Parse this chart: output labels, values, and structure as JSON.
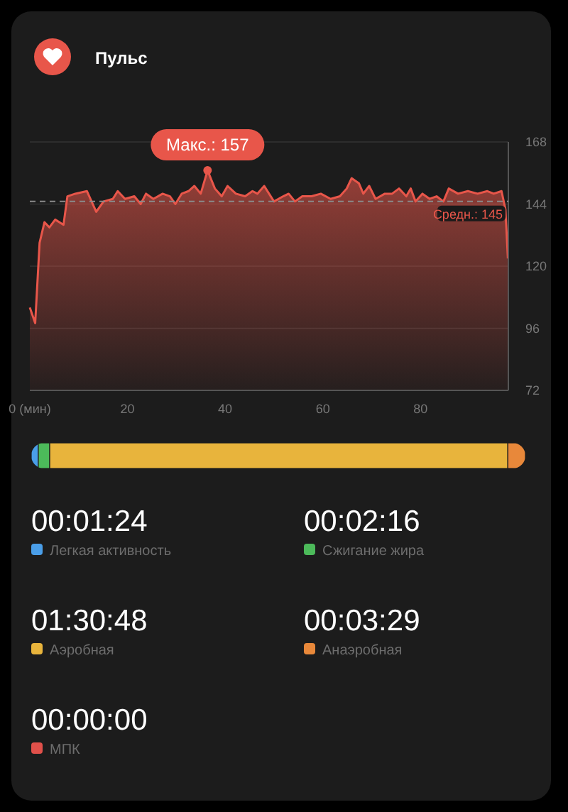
{
  "chart_data": [
    {
      "type": "area",
      "title": "Пульс",
      "xlim": [
        0,
        98
      ],
      "ylim": [
        72,
        168
      ],
      "xticks": [
        {
          "value": 0,
          "label": "0 (мин)"
        },
        20,
        40,
        60,
        80
      ],
      "yticks": [
        72,
        96,
        120,
        144,
        168
      ],
      "grid": "y",
      "x": [
        0,
        1.1,
        2,
        3,
        4,
        5.2,
        6.9,
        7.7,
        9.3,
        11.7,
        13.6,
        15.1,
        17,
        18,
        19.5,
        21.4,
        22.7,
        23.8,
        25.3,
        27.2,
        28.7,
        29.8,
        31.1,
        32.5,
        33.7,
        35,
        36.4,
        37.9,
        39.3,
        40.5,
        42.2,
        44.1,
        45.6,
        46.6,
        48,
        50,
        51.9,
        53,
        54.3,
        55.8,
        57.7,
        59.6,
        61.6,
        63.5,
        64.9,
        65.9,
        67.4,
        68.3,
        69.5,
        70.8,
        72.7,
        74.2,
        75.6,
        77.1,
        78,
        79,
        80.4,
        81.9,
        83.3,
        84.7,
        85.8,
        87.7,
        89.7,
        91.7,
        93.7,
        95,
        96.6,
        97.4,
        97.9
      ],
      "series": [
        {
          "color": "#e8564a",
          "values": [
            104,
            98,
            129,
            137,
            135,
            138,
            136,
            147,
            148,
            149,
            141,
            145,
            146,
            149,
            146,
            147,
            144,
            148,
            146,
            148,
            147,
            144,
            148,
            149,
            151,
            148,
            157,
            150,
            147,
            151,
            148,
            147,
            149,
            148,
            151,
            145,
            147,
            148,
            145,
            147,
            147,
            148,
            146,
            147,
            150,
            154,
            152,
            148,
            151,
            146,
            148,
            148,
            150,
            147,
            150,
            145,
            148,
            146,
            147,
            145,
            150,
            148,
            149,
            148,
            149,
            148,
            149,
            142,
            123
          ]
        }
      ],
      "ref_lines": [
        {
          "axis": "y",
          "value": 145,
          "label": "Средн.: 145",
          "color": "#8a8a8a",
          "line_style": "dashed"
        }
      ],
      "annotations": [
        {
          "text": "Макс.: 157",
          "x": 36.4,
          "y": 157
        }
      ]
    },
    {
      "type": "other",
      "categories": [
        "Легкая активность",
        "Сжигание жира",
        "Аэробная",
        "Анаэробная",
        "МПК"
      ],
      "values": [
        84,
        136,
        5448,
        209,
        0
      ],
      "value_labels": [
        "00:01:24",
        "00:02:16",
        "01:30:48",
        "00:03:29",
        "00:00:00"
      ],
      "colors": [
        "#4a9ee8",
        "#4cba5a",
        "#e8b43c",
        "#e8883a",
        "#e0504a"
      ]
    }
  ]
}
